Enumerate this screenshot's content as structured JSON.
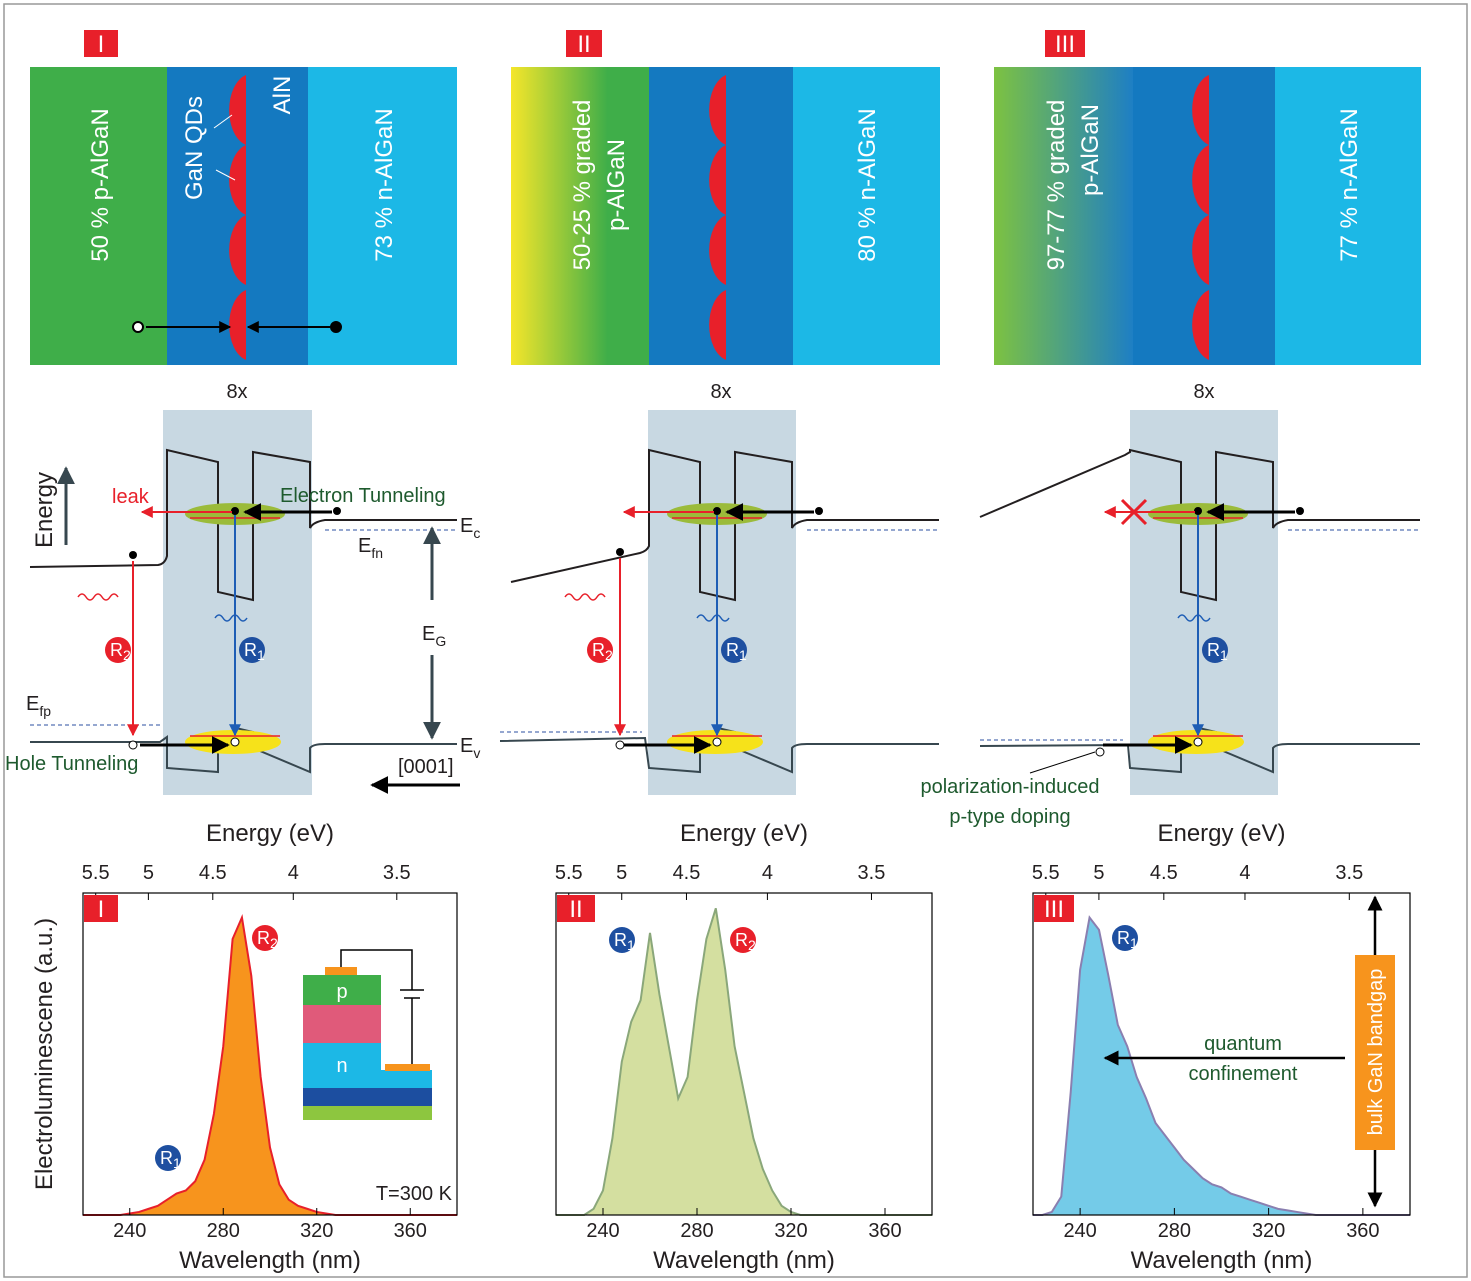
{
  "panels": [
    {
      "label": "I",
      "layers": {
        "p": [
          "50 % p-AlGaN"
        ],
        "qd": "GaN QDs",
        "barrier": "AlN",
        "n": "73 % n-AlGaN"
      },
      "period": "8x"
    },
    {
      "label": "II",
      "layers": {
        "p": [
          "50-25 % graded",
          "p-AlGaN"
        ],
        "n": "80 % n-AlGaN"
      },
      "period": "8x"
    },
    {
      "label": "III",
      "layers": {
        "p": [
          "97-77 % graded",
          "p-AlGaN"
        ],
        "n": "77 % n-AlGaN"
      },
      "period": "8x"
    }
  ],
  "band_diagram": {
    "energy_axis": "Energy",
    "leak": "leak",
    "electron_tunneling": "Electron Tunneling",
    "hole_tunneling": "Hole Tunneling",
    "ec": {
      "main": "E",
      "sub": "c"
    },
    "efn": {
      "main": "E",
      "sub": "fn"
    },
    "efp": {
      "main": "E",
      "sub": "fp"
    },
    "ev": {
      "main": "E",
      "sub": "v"
    },
    "eg": {
      "main": "E",
      "sub": "G"
    },
    "r1": {
      "main": "R",
      "sub": "1"
    },
    "r2": {
      "main": "R",
      "sub": "2"
    },
    "direction": "[0001]",
    "polarization": [
      "polarization-induced",
      "p-type doping"
    ]
  },
  "chart_data": [
    {
      "type": "area",
      "panel_label": "I",
      "x_label": "Wavelength (nm)",
      "x2_label": "Energy (eV)",
      "y_label": "Electroluminescene (a.u.)",
      "color": "#f7941d",
      "line_color": "#e8202a",
      "x": [
        220,
        224,
        228,
        232,
        236,
        240,
        244,
        248,
        252,
        256,
        260,
        264,
        268,
        272,
        276,
        280,
        284,
        288,
        292,
        296,
        300,
        304,
        308,
        312,
        316,
        320,
        324,
        328,
        332,
        336,
        340,
        344,
        348,
        352,
        356,
        360,
        364,
        368,
        372,
        376,
        380
      ],
      "values": [
        0,
        0,
        0,
        0,
        0,
        0.005,
        0.01,
        0.02,
        0.03,
        0.05,
        0.07,
        0.08,
        0.11,
        0.18,
        0.33,
        0.55,
        0.9,
        0.97,
        0.78,
        0.45,
        0.22,
        0.1,
        0.05,
        0.03,
        0.02,
        0.01,
        0.005,
        0,
        0,
        0,
        0,
        0,
        0,
        0,
        0,
        0,
        0,
        0,
        0,
        0,
        0
      ],
      "xlim": [
        220,
        380
      ],
      "ylim": [
        0,
        1.05
      ],
      "xticks": [
        240,
        280,
        320,
        360
      ],
      "x2ticks": [
        {
          "value": 225.43,
          "label": "5.5"
        },
        {
          "value": 247.97,
          "label": "5"
        },
        {
          "value": 275.52,
          "label": "4.5"
        },
        {
          "value": 309.96,
          "label": "4"
        },
        {
          "value": 354.24,
          "label": "3.5"
        }
      ],
      "annotation": "T=300 K",
      "inset": {
        "p": "p",
        "n": "n"
      }
    },
    {
      "type": "area",
      "panel_label": "II",
      "x_label": "Wavelength (nm)",
      "x2_label": "Energy (eV)",
      "color": "#d4dfa0",
      "line_color": "#8aa77a",
      "x": [
        220,
        224,
        228,
        232,
        236,
        240,
        244,
        248,
        252,
        256,
        260,
        264,
        268,
        272,
        276,
        280,
        284,
        288,
        292,
        296,
        300,
        304,
        308,
        312,
        316,
        320,
        324,
        328,
        332,
        336,
        340,
        344,
        348,
        352,
        356,
        360,
        364,
        368,
        372,
        376,
        380
      ],
      "values": [
        0,
        0,
        0,
        0,
        0.02,
        0.08,
        0.25,
        0.5,
        0.63,
        0.7,
        0.92,
        0.72,
        0.55,
        0.38,
        0.45,
        0.7,
        0.9,
        1.0,
        0.8,
        0.55,
        0.4,
        0.25,
        0.15,
        0.08,
        0.03,
        0.01,
        0,
        0,
        0,
        0,
        0,
        0,
        0,
        0,
        0,
        0,
        0,
        0,
        0,
        0,
        0
      ],
      "xlim": [
        220,
        380
      ],
      "ylim": [
        0,
        1.05
      ],
      "xticks": [
        240,
        280,
        320,
        360
      ],
      "x2ticks": [
        {
          "value": 225.43,
          "label": "5.5"
        },
        {
          "value": 247.97,
          "label": "5"
        },
        {
          "value": 275.52,
          "label": "4.5"
        },
        {
          "value": 309.96,
          "label": "4"
        },
        {
          "value": 354.24,
          "label": "3.5"
        }
      ]
    },
    {
      "type": "area",
      "panel_label": "III",
      "x_label": "Wavelength (nm)",
      "x2_label": "Energy (eV)",
      "color": "#74cbe8",
      "line_color": "#8a7fb0",
      "x": [
        220,
        224,
        228,
        232,
        236,
        240,
        244,
        248,
        252,
        256,
        260,
        264,
        268,
        272,
        276,
        280,
        284,
        288,
        292,
        296,
        300,
        304,
        308,
        312,
        316,
        320,
        324,
        328,
        332,
        336,
        340,
        344,
        348,
        352,
        356,
        360,
        364,
        368,
        372,
        376,
        380
      ],
      "values": [
        0,
        0,
        0.01,
        0.06,
        0.4,
        0.8,
        0.97,
        0.93,
        0.78,
        0.62,
        0.55,
        0.45,
        0.38,
        0.3,
        0.26,
        0.22,
        0.18,
        0.15,
        0.12,
        0.1,
        0.09,
        0.07,
        0.06,
        0.05,
        0.04,
        0.03,
        0.02,
        0.015,
        0.01,
        0.005,
        0,
        0,
        0,
        0,
        0,
        0,
        0,
        0,
        0,
        0,
        0
      ],
      "xlim": [
        220,
        380
      ],
      "ylim": [
        0,
        1.05
      ],
      "xticks": [
        240,
        280,
        320,
        360
      ],
      "x2ticks": [
        {
          "value": 225.43,
          "label": "5.5"
        },
        {
          "value": 247.97,
          "label": "5"
        },
        {
          "value": 275.52,
          "label": "4.5"
        },
        {
          "value": 309.96,
          "label": "4"
        },
        {
          "value": 354.24,
          "label": "3.5"
        }
      ],
      "annotations": [
        "quantum",
        "confinement"
      ],
      "bandgap": "bulk GaN bandgap"
    }
  ]
}
